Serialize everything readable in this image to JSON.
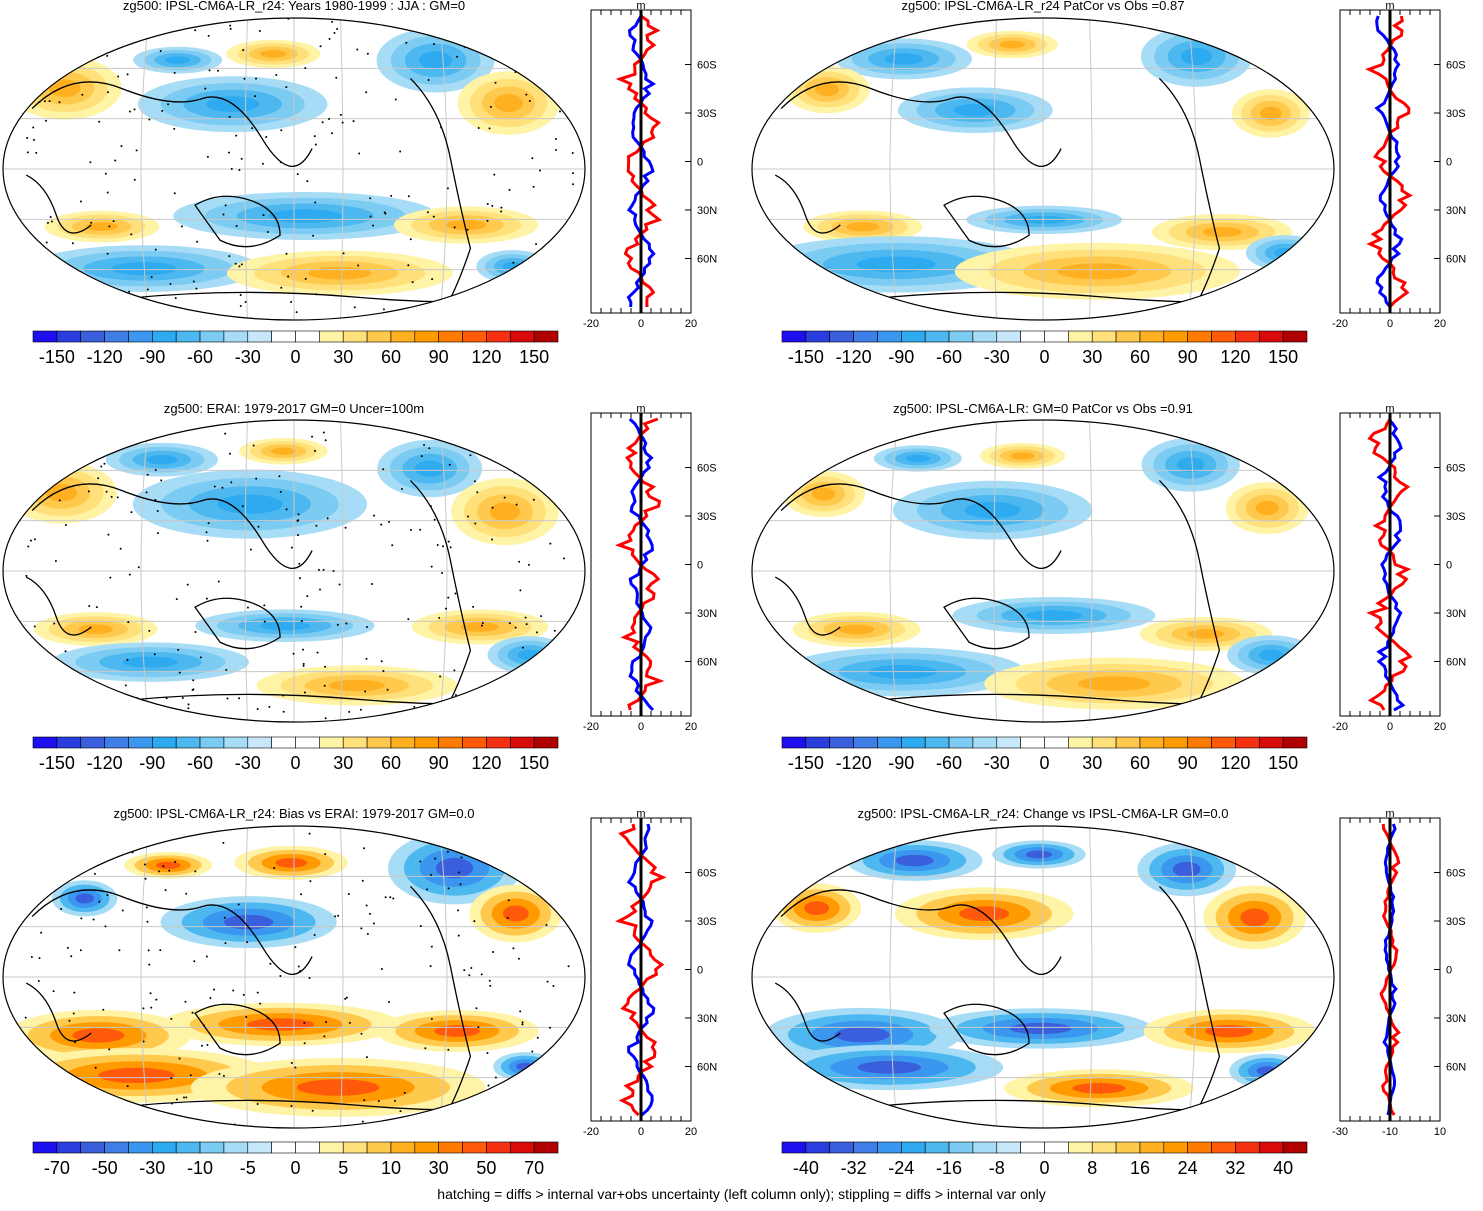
{
  "footer": "hatching = diffs > internal var+obs uncertainty (left column only); stippling = diffs > internal var only",
  "profile_lat_labels": [
    "60N",
    "30N",
    "0",
    "30S",
    "60S"
  ],
  "profile_unit": "m",
  "colors": {
    "negative": [
      "#1e0ff0",
      "#2a3ee0",
      "#3a5fdd",
      "#3f7ee6",
      "#3a96ee",
      "#2eaaf0",
      "#4db8f0",
      "#7ccbf2",
      "#a6dcf5"
    ],
    "positive": [
      "#fff3a6",
      "#ffe07a",
      "#ffc94d",
      "#ffb020",
      "#ff9a00",
      "#ff7a00",
      "#ff5a0a",
      "#f53012",
      "#d80a0a"
    ],
    "model_line": "#ff0000",
    "obs_line": "#0000ff",
    "coast": "#000000"
  },
  "panels": [
    {
      "title": "zg500: IPSL-CM6A-LR_r24: Years 1980-1999 : JJA : GM=0",
      "colorbar_labels": [
        "-150",
        "-120",
        "-90",
        "-60",
        "-30",
        "0",
        "30",
        "60",
        "90",
        "120",
        "150"
      ],
      "profile_x_ticks": [
        "-20",
        "0",
        "20"
      ]
    },
    {
      "title": "zg500: IPSL-CM6A-LR_r24 PatCor vs Obs =0.87",
      "colorbar_labels": [
        "-150",
        "-120",
        "-90",
        "-60",
        "-30",
        "0",
        "30",
        "60",
        "90",
        "120",
        "150"
      ],
      "profile_x_ticks": [
        "-20",
        "0",
        "20"
      ]
    },
    {
      "title": "zg500: ERAI: 1979-2017 GM=0 Uncer=100m",
      "colorbar_labels": [
        "-150",
        "-120",
        "-90",
        "-60",
        "-30",
        "0",
        "30",
        "60",
        "90",
        "120",
        "150"
      ],
      "profile_x_ticks": [
        "-20",
        "0",
        "20"
      ]
    },
    {
      "title": "zg500: IPSL-CM6A-LR: GM=0 PatCor vs Obs =0.91",
      "colorbar_labels": [
        "-150",
        "-120",
        "-90",
        "-60",
        "-30",
        "0",
        "30",
        "60",
        "90",
        "120",
        "150"
      ],
      "profile_x_ticks": [
        "-20",
        "0",
        "20"
      ]
    },
    {
      "title": "zg500: IPSL-CM6A-LR_r24: Bias vs ERAI: 1979-2017 GM=0.0",
      "colorbar_labels": [
        "-70",
        "-50",
        "-30",
        "-10",
        "-5",
        "0",
        "5",
        "10",
        "30",
        "50",
        "70"
      ],
      "profile_x_ticks": [
        "-20",
        "0",
        "20"
      ]
    },
    {
      "title": "zg500: IPSL-CM6A-LR_r24: Change vs IPSL-CM6A-LR GM=0.0",
      "colorbar_labels": [
        "-40",
        "-32",
        "-24",
        "-16",
        "-8",
        "0",
        "8",
        "16",
        "24",
        "32",
        "40"
      ],
      "profile_x_ticks": [
        "-30",
        "-10",
        "10"
      ]
    }
  ]
}
